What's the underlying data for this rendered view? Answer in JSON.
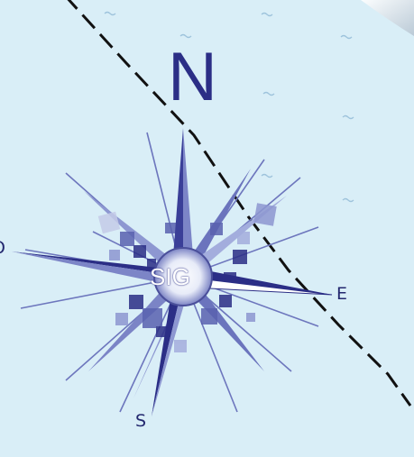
{
  "compass": {
    "north_label": "N",
    "east_label": "E",
    "south_label": "S",
    "west_label": "O",
    "center_label": "SIG"
  },
  "colors": {
    "sea": "#d9eef7",
    "compass_dark": "#2b2e86",
    "compass_mid": "#5a62b0",
    "compass_light": "#a9b3dd",
    "route_line": "#111111"
  },
  "icons": {
    "wave": "wave-icon",
    "route": "dashed-route-line"
  }
}
